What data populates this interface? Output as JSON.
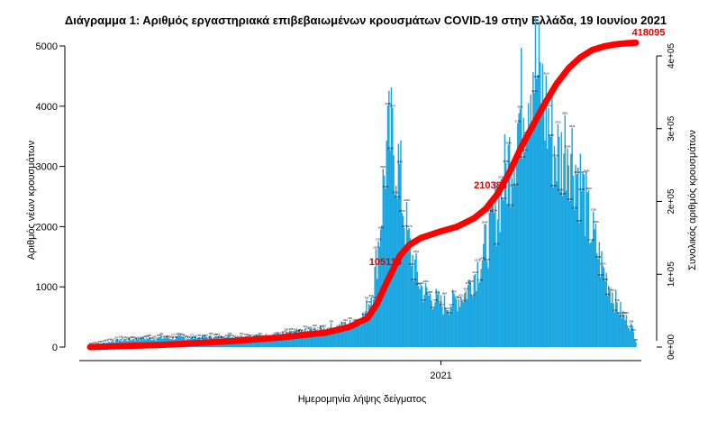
{
  "colors": {
    "bars": "#1ba6e0",
    "cumulative": "#ff0000",
    "axis": "#000000"
  },
  "chart_data": {
    "type": "bar",
    "title": "Διάγραμμα 1: Αριθμός εργαστηριακά επιβεβαιωμένων κρουσμάτων COVID-19 στην Ελλάδα, 19 Ιουνίου 2021",
    "xlabel": "Ημερομηνία λήψης δείγματος",
    "ylabel": "Αριθμός νέων κρουσμάτων",
    "ylabel_right": "Συνολικός αριθμός κρουσμάτων",
    "ylim": [
      0,
      5000
    ],
    "yticks": [
      "0",
      "1000",
      "2000",
      "3000",
      "4000",
      "5000"
    ],
    "ylim_right": [
      0,
      420000
    ],
    "yticks_right": [
      "0e+00",
      "1e+05",
      "2e+05",
      "3e+05",
      "4e+05"
    ],
    "x_range_days": [
      0,
      462
    ],
    "xtick": {
      "label": "2021",
      "day": 297
    },
    "series": [
      {
        "kind": "bar",
        "day_range": [
          0,
          462
        ],
        "shape_knots": [
          [
            0,
            30
          ],
          [
            20,
            100
          ],
          [
            40,
            140
          ],
          [
            60,
            150
          ],
          [
            100,
            160
          ],
          [
            140,
            170
          ],
          [
            160,
            200
          ],
          [
            180,
            240
          ],
          [
            200,
            300
          ],
          [
            220,
            370
          ],
          [
            232,
            520
          ],
          [
            240,
            1000
          ],
          [
            245,
            1900
          ],
          [
            250,
            3100
          ],
          [
            254,
            3500
          ],
          [
            258,
            3300
          ],
          [
            262,
            2900
          ],
          [
            266,
            2200
          ],
          [
            270,
            1700
          ],
          [
            275,
            1300
          ],
          [
            280,
            1000
          ],
          [
            286,
            850
          ],
          [
            292,
            800
          ],
          [
            298,
            700
          ],
          [
            304,
            720
          ],
          [
            310,
            780
          ],
          [
            318,
            900
          ],
          [
            325,
            1200
          ],
          [
            332,
            1500
          ],
          [
            340,
            2000
          ],
          [
            348,
            2600
          ],
          [
            356,
            3200
          ],
          [
            364,
            3900
          ],
          [
            370,
            4400
          ],
          [
            375,
            4800
          ],
          [
            380,
            4400
          ],
          [
            386,
            3900
          ],
          [
            392,
            3400
          ],
          [
            398,
            3100
          ],
          [
            404,
            3500
          ],
          [
            410,
            3100
          ],
          [
            416,
            2700
          ],
          [
            422,
            2100
          ],
          [
            428,
            1700
          ],
          [
            434,
            1300
          ],
          [
            440,
            1000
          ],
          [
            446,
            700
          ],
          [
            452,
            500
          ],
          [
            458,
            350
          ],
          [
            462,
            120
          ]
        ]
      },
      {
        "kind": "line",
        "name": "cumulative",
        "points": [
          [
            0,
            0
          ],
          [
            60,
            3000
          ],
          [
            120,
            8000
          ],
          [
            160,
            13000
          ],
          [
            200,
            20000
          ],
          [
            220,
            28000
          ],
          [
            235,
            40000
          ],
          [
            243,
            60000
          ],
          [
            250,
            85000
          ],
          [
            256,
            105118
          ],
          [
            262,
            125000
          ],
          [
            270,
            140000
          ],
          [
            280,
            150000
          ],
          [
            295,
            158000
          ],
          [
            310,
            165000
          ],
          [
            325,
            177000
          ],
          [
            335,
            190000
          ],
          [
            345,
            210383
          ],
          [
            355,
            240000
          ],
          [
            365,
            275000
          ],
          [
            375,
            305000
          ],
          [
            385,
            335000
          ],
          [
            395,
            362000
          ],
          [
            405,
            383000
          ],
          [
            415,
            398000
          ],
          [
            425,
            408000
          ],
          [
            435,
            413000
          ],
          [
            445,
            416000
          ],
          [
            455,
            417500
          ],
          [
            462,
            418095
          ]
        ]
      }
    ],
    "annotations": [
      {
        "day": 256,
        "value": 105118,
        "label": "105118"
      },
      {
        "day": 345,
        "value": 210383,
        "label": "210383"
      },
      {
        "day": 462,
        "value": 418095,
        "label": "418095"
      }
    ]
  }
}
